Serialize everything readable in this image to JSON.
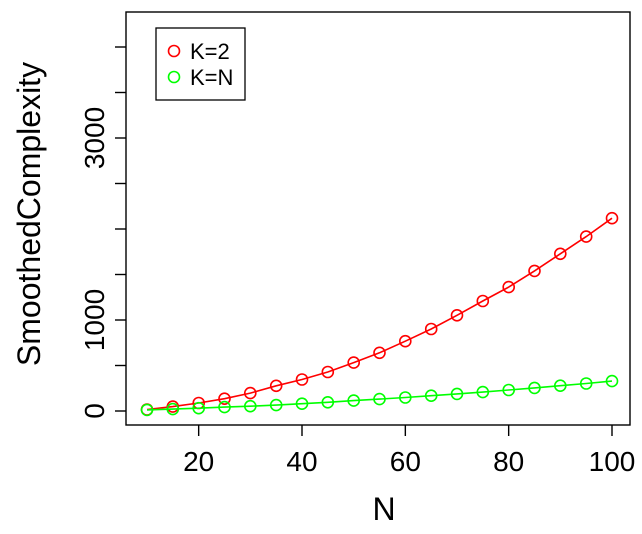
{
  "chart_data": {
    "type": "line",
    "title": "",
    "xlabel": "N",
    "ylabel": "SmoothedComplexity",
    "xlim": [
      10,
      100
    ],
    "ylim": [
      0,
      4250
    ],
    "x_ticks": [
      20,
      40,
      60,
      80,
      100
    ],
    "y_ticks": [
      0,
      500,
      1000,
      1500,
      2000,
      2500,
      3000,
      3500,
      4000
    ],
    "y_tick_labels": [
      "0",
      "",
      "1000",
      "",
      "",
      "",
      "3000",
      "",
      ""
    ],
    "x": [
      10,
      15,
      20,
      25,
      30,
      35,
      40,
      45,
      50,
      55,
      60,
      65,
      70,
      75,
      80,
      85,
      90,
      95,
      100
    ],
    "series": [
      {
        "name": "K=2",
        "color": "#ff0000",
        "values": [
          16,
          48,
          88,
          135,
          197,
          277,
          346,
          429,
          532,
          640,
          767,
          901,
          1052,
          1209,
          1362,
          1540,
          1727,
          1917,
          2119
        ]
      },
      {
        "name": "K=N",
        "color": "#00ff00",
        "values": [
          12,
          21,
          31,
          43,
          53,
          65,
          80,
          96,
          114,
          131,
          148,
          168,
          188,
          208,
          231,
          254,
          278,
          302,
          329
        ]
      }
    ],
    "grid": false,
    "legend_position": "top-left",
    "marker": "open-circle"
  }
}
